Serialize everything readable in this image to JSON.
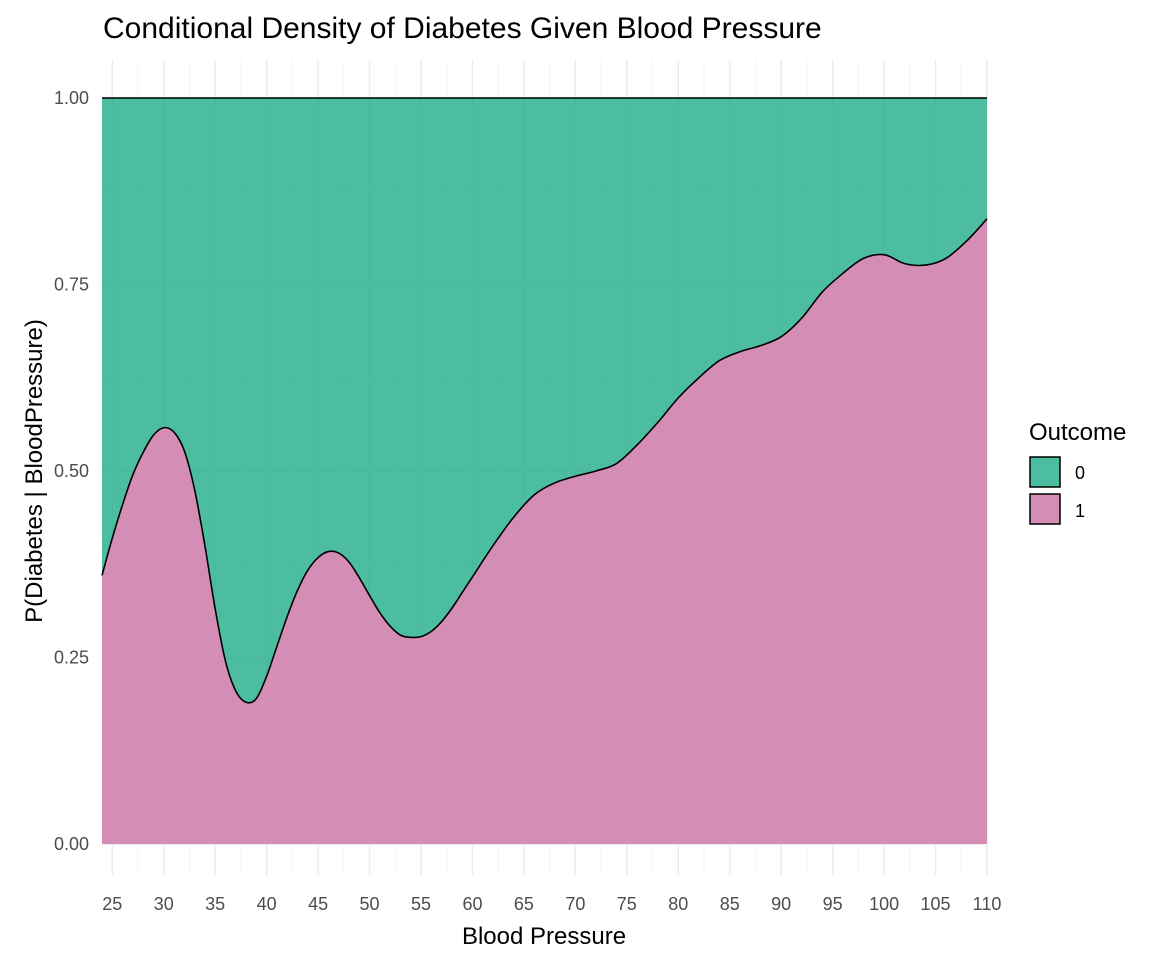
{
  "chart_data": {
    "type": "area",
    "title": "Conditional Density of Diabetes Given Blood Pressure",
    "xlabel": "Blood Pressure",
    "ylabel": "P(Diabetes | BloodPressure)",
    "xlim": [
      24,
      110
    ],
    "ylim": [
      0,
      1
    ],
    "x_ticks": [
      25,
      30,
      35,
      40,
      45,
      50,
      55,
      60,
      65,
      70,
      75,
      80,
      85,
      90,
      95,
      100,
      105,
      110
    ],
    "x_tick_labels": [
      "25",
      "30",
      "35",
      "40",
      "45",
      "50",
      "55",
      "60",
      "65",
      "70",
      "75",
      "80",
      "85",
      "90",
      "95",
      "100",
      "105",
      "110"
    ],
    "y_ticks": [
      0,
      0.25,
      0.5,
      0.75,
      1
    ],
    "y_tick_labels": [
      "0.00",
      "0.25",
      "0.50",
      "0.75",
      "1.00"
    ],
    "grid": true,
    "legend": {
      "title": "Outcome",
      "position": "right"
    },
    "stacked": true,
    "position": "fill",
    "series": [
      {
        "name": "0",
        "color": "#1baa86"
      },
      {
        "name": "1",
        "color": "#d48db5"
      }
    ],
    "boundary": {
      "description_series": "1",
      "x": [
        24,
        25,
        26,
        27,
        28,
        29,
        30,
        31,
        32,
        33,
        34,
        35,
        36,
        37,
        38,
        39,
        40,
        41,
        42,
        43,
        44,
        45,
        46,
        47,
        48,
        49,
        50,
        51,
        52,
        53,
        54,
        55,
        56,
        57,
        58,
        59,
        60,
        62,
        64,
        66,
        68,
        70,
        72,
        74,
        76,
        78,
        80,
        82,
        84,
        86,
        88,
        90,
        92,
        94,
        96,
        98,
        100,
        102,
        104,
        106,
        108,
        110
      ],
      "y": [
        0.36,
        0.41,
        0.455,
        0.495,
        0.525,
        0.548,
        0.558,
        0.552,
        0.527,
        0.475,
        0.4,
        0.315,
        0.245,
        0.205,
        0.19,
        0.195,
        0.225,
        0.265,
        0.305,
        0.34,
        0.367,
        0.384,
        0.392,
        0.39,
        0.378,
        0.357,
        0.333,
        0.31,
        0.292,
        0.28,
        0.277,
        0.278,
        0.285,
        0.298,
        0.316,
        0.337,
        0.358,
        0.4,
        0.438,
        0.468,
        0.484,
        0.493,
        0.5,
        0.51,
        0.535,
        0.565,
        0.598,
        0.625,
        0.648,
        0.66,
        0.668,
        0.68,
        0.705,
        0.74,
        0.765,
        0.785,
        0.79,
        0.778,
        0.776,
        0.785,
        0.808,
        0.838
      ]
    }
  }
}
